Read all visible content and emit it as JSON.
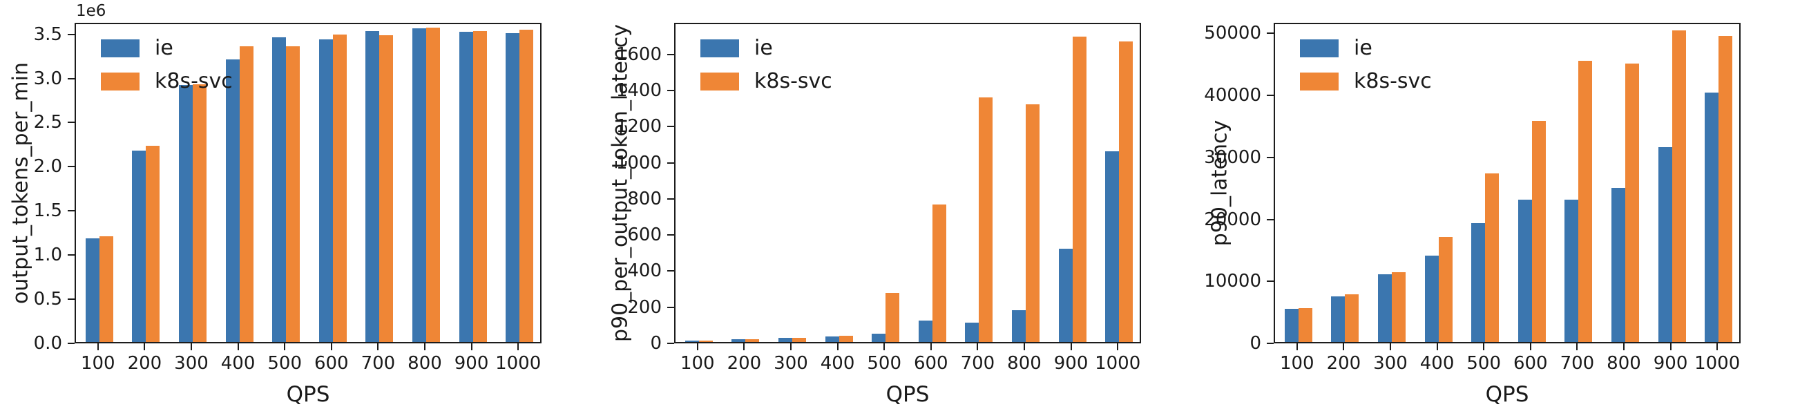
{
  "figure": {
    "background": "#ffffff",
    "series_colors": {
      "ie": "#3b76af",
      "k8s-svc": "#ef8636"
    },
    "legend": {
      "position": "upper-left",
      "entries": [
        {
          "label": "ie",
          "color": "#3b76af"
        },
        {
          "label": "k8s-svc",
          "color": "#ef8636"
        }
      ]
    }
  },
  "chart_data": [
    {
      "type": "bar",
      "title": "",
      "xlabel": "QPS",
      "ylabel": "output_tokens_per_min",
      "offset_text": "1e6",
      "grid": false,
      "legend_position": "upper-left",
      "categories": [
        "100",
        "200",
        "300",
        "400",
        "500",
        "600",
        "700",
        "800",
        "900",
        "1000"
      ],
      "series": [
        {
          "name": "ie",
          "color": "#3b76af",
          "values": [
            1170000,
            2170000,
            2910000,
            3200000,
            3450000,
            3430000,
            3520000,
            3550000,
            3510000,
            3500000
          ]
        },
        {
          "name": "k8s-svc",
          "color": "#ef8636",
          "values": [
            1200000,
            2220000,
            2920000,
            3350000,
            3350000,
            3480000,
            3470000,
            3560000,
            3520000,
            3540000
          ]
        }
      ],
      "ylim": [
        0,
        3630000
      ],
      "yticks": [
        0,
        500000,
        1000000,
        1500000,
        2000000,
        2500000,
        3000000,
        3500000
      ],
      "ytick_labels": [
        "0.0",
        "0.5",
        "1.0",
        "1.5",
        "2.0",
        "2.5",
        "3.0",
        "3.5"
      ]
    },
    {
      "type": "bar",
      "title": "",
      "xlabel": "QPS",
      "ylabel": "p90_per_output_token_latency",
      "offset_text": "",
      "grid": false,
      "legend_position": "upper-left",
      "categories": [
        "100",
        "200",
        "300",
        "400",
        "500",
        "600",
        "700",
        "800",
        "900",
        "1000"
      ],
      "series": [
        {
          "name": "ie",
          "color": "#3b76af",
          "values": [
            8,
            15,
            22,
            32,
            46,
            118,
            108,
            175,
            515,
            1055
          ]
        },
        {
          "name": "k8s-svc",
          "color": "#ef8636",
          "values": [
            9,
            16,
            23,
            36,
            270,
            760,
            1355,
            1315,
            1690,
            1665
          ]
        }
      ],
      "ylim": [
        0,
        1775
      ],
      "yticks": [
        0,
        200,
        400,
        600,
        800,
        1000,
        1200,
        1400,
        1600
      ],
      "ytick_labels": [
        "0",
        "200",
        "400",
        "600",
        "800",
        "1000",
        "1200",
        "1400",
        "1600"
      ]
    },
    {
      "type": "bar",
      "title": "",
      "xlabel": "QPS",
      "ylabel": "p90_latency",
      "offset_text": "",
      "grid": false,
      "legend_position": "upper-left",
      "categories": [
        "100",
        "200",
        "300",
        "400",
        "500",
        "600",
        "700",
        "800",
        "900",
        "1000"
      ],
      "series": [
        {
          "name": "ie",
          "color": "#3b76af",
          "values": [
            5300,
            7400,
            10900,
            13900,
            19200,
            23000,
            22900,
            24800,
            31400,
            40200
          ]
        },
        {
          "name": "k8s-svc",
          "color": "#ef8636",
          "values": [
            5500,
            7700,
            11200,
            16900,
            27200,
            35700,
            45400,
            44900,
            50300,
            49400
          ]
        }
      ],
      "ylim": [
        0,
        51700
      ],
      "yticks": [
        0,
        10000,
        20000,
        30000,
        40000,
        50000
      ],
      "ytick_labels": [
        "0",
        "10000",
        "20000",
        "30000",
        "40000",
        "50000"
      ]
    }
  ]
}
